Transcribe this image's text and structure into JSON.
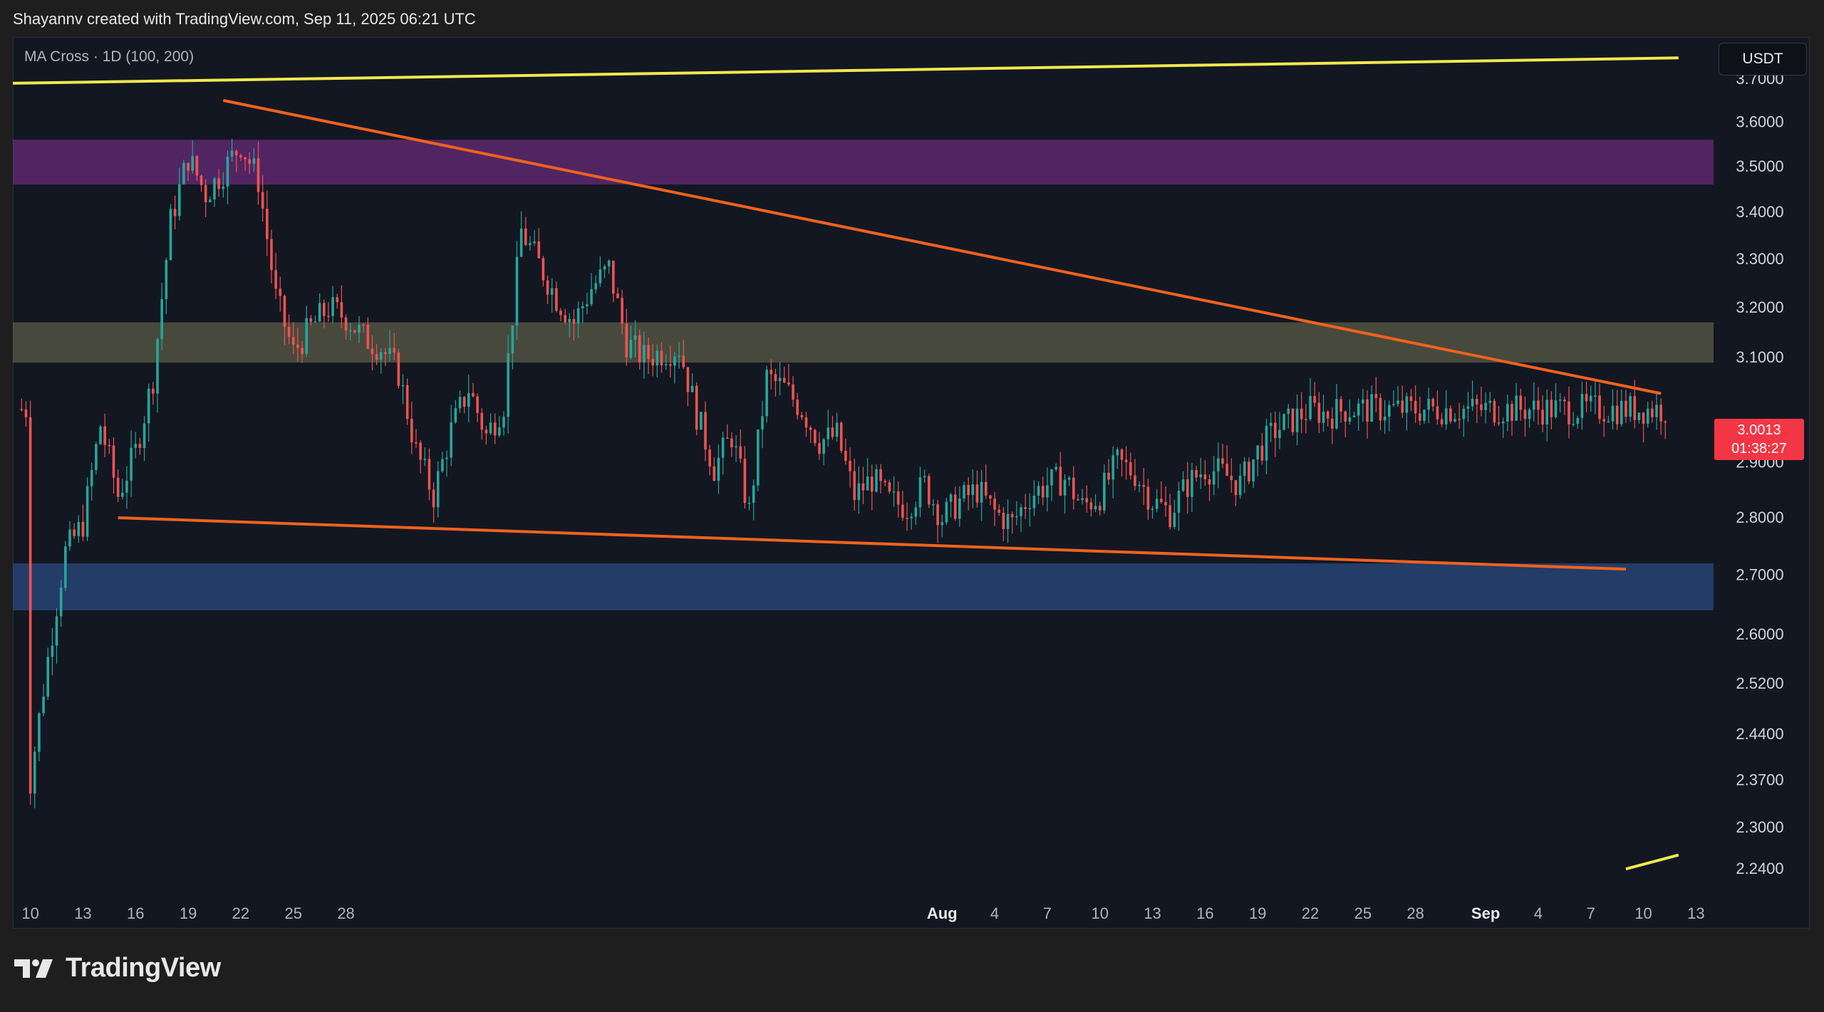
{
  "header": {
    "attribution": "Shayannv created with TradingView.com, Sep 11, 2025 06:21 UTC"
  },
  "indicator": {
    "label": "MA Cross · 1D (100, 200)"
  },
  "currency": {
    "label": "USDT"
  },
  "last_price": {
    "value": "3.0013",
    "countdown": "01:38:27",
    "color": "#f23645"
  },
  "brand": {
    "name": "TradingView",
    "logo_icon": "tradingview-logo-icon"
  },
  "colors": {
    "up": "#26a69a",
    "down": "#ef5350",
    "trendline": "#f0621f",
    "channel_line": "#f2e94e"
  },
  "chart_data": {
    "type": "candlestick",
    "title": "",
    "xlabel": "",
    "ylabel": "",
    "ylim": [
      2.2,
      3.8
    ],
    "y_scale": "log",
    "y_ticks": [
      "3.7000",
      "3.6000",
      "3.5000",
      "3.4000",
      "3.3000",
      "3.2000",
      "3.1000",
      "2.9000",
      "2.8000",
      "2.7000",
      "2.6000",
      "2.5200",
      "2.4400",
      "2.3700",
      "2.3000",
      "2.2400"
    ],
    "x_tick_labels": [
      "10",
      "13",
      "16",
      "19",
      "22",
      "25",
      "28",
      "Aug",
      "4",
      "7",
      "10",
      "13",
      "16",
      "19",
      "22",
      "25",
      "28",
      "Sep",
      "4",
      "7",
      "10",
      "13"
    ],
    "x_tick_dates": [
      "2025-06-10",
      "2025-06-13",
      "2025-06-16",
      "2025-06-19",
      "2025-06-22",
      "2025-06-25",
      "2025-06-28",
      "2025-08-01",
      "2025-08-04",
      "2025-08-07",
      "2025-08-10",
      "2025-08-13",
      "2025-08-16",
      "2025-08-19",
      "2025-08-22",
      "2025-08-25",
      "2025-08-28",
      "2025-09-01",
      "2025-09-04",
      "2025-09-07",
      "2025-09-10",
      "2025-09-13"
    ],
    "bold_ticks": [
      "Aug",
      "Sep"
    ],
    "price_path": [
      [
        "2025-06-10",
        2.37
      ],
      [
        "2025-06-11",
        2.56
      ],
      [
        "2025-06-12",
        2.74
      ],
      [
        "2025-06-13",
        2.79
      ],
      [
        "2025-06-14",
        2.97
      ],
      [
        "2025-06-15",
        2.84
      ],
      [
        "2025-06-16",
        2.92
      ],
      [
        "2025-06-17",
        3.06
      ],
      [
        "2025-06-18",
        3.38
      ],
      [
        "2025-06-19",
        3.52
      ],
      [
        "2025-06-20",
        3.44
      ],
      [
        "2025-06-21",
        3.49
      ],
      [
        "2025-06-22",
        3.55
      ],
      [
        "2025-06-23",
        3.47
      ],
      [
        "2025-06-24",
        3.22
      ],
      [
        "2025-06-25",
        3.11
      ],
      [
        "2025-06-26",
        3.16
      ],
      [
        "2025-06-27",
        3.2
      ],
      [
        "2025-06-28",
        3.18
      ],
      [
        "2025-06-29",
        3.14
      ],
      [
        "2025-06-30",
        3.12
      ],
      [
        "2025-07-01",
        3.07
      ],
      [
        "2025-07-02",
        2.92
      ],
      [
        "2025-07-03",
        2.84
      ],
      [
        "2025-07-04",
        2.96
      ],
      [
        "2025-07-05",
        3.04
      ],
      [
        "2025-07-06",
        2.95
      ],
      [
        "2025-07-07",
        3.01
      ],
      [
        "2025-07-08",
        3.36
      ],
      [
        "2025-07-09",
        3.29
      ],
      [
        "2025-07-10",
        3.22
      ],
      [
        "2025-07-11",
        3.17
      ],
      [
        "2025-07-12",
        3.24
      ],
      [
        "2025-07-13",
        3.28
      ],
      [
        "2025-07-14",
        3.13
      ],
      [
        "2025-07-15",
        3.1
      ],
      [
        "2025-07-16",
        3.11
      ],
      [
        "2025-07-17",
        3.12
      ],
      [
        "2025-07-18",
        2.99
      ],
      [
        "2025-07-19",
        2.89
      ],
      [
        "2025-07-20",
        2.95
      ],
      [
        "2025-07-21",
        2.81
      ],
      [
        "2025-07-22",
        3.06
      ],
      [
        "2025-07-23",
        3.04
      ],
      [
        "2025-07-24",
        3.0
      ],
      [
        "2025-07-25",
        2.94
      ],
      [
        "2025-07-26",
        2.95
      ],
      [
        "2025-07-27",
        2.84
      ],
      [
        "2025-07-28",
        2.87
      ],
      [
        "2025-07-29",
        2.83
      ],
      [
        "2025-07-30",
        2.82
      ],
      [
        "2025-07-31",
        2.86
      ],
      [
        "2025-08-01",
        2.8
      ],
      [
        "2025-08-02",
        2.83
      ],
      [
        "2025-08-03",
        2.85
      ],
      [
        "2025-08-04",
        2.81
      ],
      [
        "2025-08-05",
        2.79
      ],
      [
        "2025-08-06",
        2.84
      ],
      [
        "2025-08-07",
        2.86
      ],
      [
        "2025-08-08",
        2.87
      ],
      [
        "2025-08-09",
        2.82
      ],
      [
        "2025-08-10",
        2.84
      ],
      [
        "2025-08-11",
        2.9
      ],
      [
        "2025-08-12",
        2.88
      ],
      [
        "2025-08-13",
        2.83
      ],
      [
        "2025-08-14",
        2.81
      ],
      [
        "2025-08-15",
        2.86
      ],
      [
        "2025-08-16",
        2.89
      ],
      [
        "2025-08-17",
        2.88
      ],
      [
        "2025-08-18",
        2.86
      ],
      [
        "2025-08-19",
        2.92
      ],
      [
        "2025-08-20",
        2.96
      ],
      [
        "2025-08-21",
        2.98
      ],
      [
        "2025-08-22",
        3.0
      ],
      [
        "2025-08-23",
        2.99
      ],
      [
        "2025-08-24",
        3.0
      ],
      [
        "2025-08-25",
        3.0
      ]
    ],
    "zones": [
      {
        "top": 3.56,
        "bottom": 3.46,
        "color": "#7b2e8e"
      },
      {
        "top": 3.17,
        "bottom": 3.09,
        "color": "#6b6a4f"
      },
      {
        "top": 2.72,
        "bottom": 2.64,
        "color": "#2f5597"
      }
    ],
    "trendlines": [
      {
        "from": [
          "2025-06-21",
          3.65
        ],
        "to": [
          "2025-09-11",
          3.03
        ],
        "color": "#f0621f"
      },
      {
        "from": [
          "2025-06-15",
          2.8
        ],
        "to": [
          "2025-09-09",
          2.71
        ],
        "color": "#f0621f"
      },
      {
        "from": [
          "2025-06-09",
          3.69
        ],
        "to": [
          "2025-09-12",
          3.75
        ],
        "color": "#f2e94e"
      },
      {
        "from": [
          "2025-09-09",
          2.24
        ],
        "to": [
          "2025-09-12",
          2.26
        ],
        "color": "#f2e94e"
      }
    ]
  }
}
